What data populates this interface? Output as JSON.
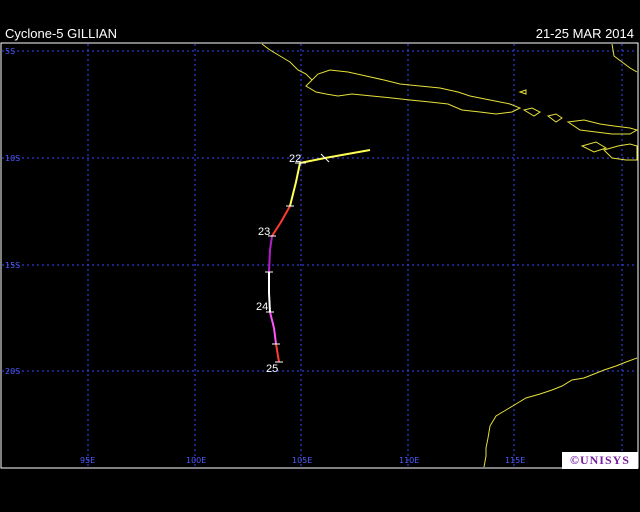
{
  "header": {
    "title": "Cyclone-5 GILLIAN",
    "dates": "21-25 MAR 2014"
  },
  "map": {
    "lat_labels": [
      "5S",
      "10S",
      "15S",
      "20S"
    ],
    "lon_labels": [
      "95E",
      "100E",
      "105E",
      "110E",
      "115E"
    ],
    "grid_color": "#3a46ff",
    "coast_color": "#e6e03a"
  },
  "track": {
    "day_labels": [
      "22",
      "23",
      "24",
      "25"
    ],
    "colors": {
      "tropical_storm": "#ffff55",
      "cat1": "#ff3b2f",
      "cat3": "#b21ec8",
      "depression": "#ffffff",
      "cat2": "#ff55ff",
      "cat1b": "#ff3b2f"
    }
  },
  "logo": {
    "text": "©UNISYS"
  }
}
